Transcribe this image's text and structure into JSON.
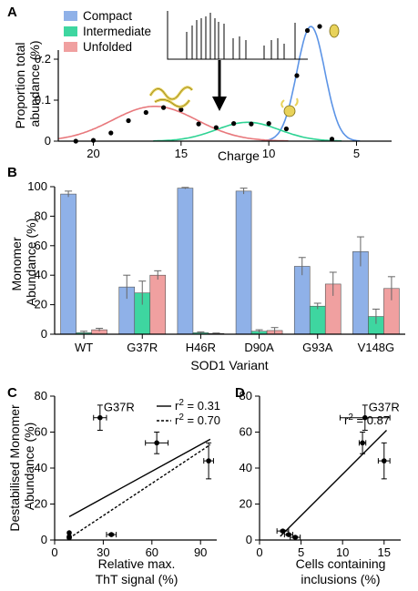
{
  "figure": {
    "panels": [
      {
        "label": "A"
      },
      {
        "label": "B"
      },
      {
        "label": "C"
      },
      {
        "label": "D"
      }
    ]
  },
  "colors": {
    "compact": "#8fb1e8",
    "intermediate": "#3ed6a0",
    "unfolded": "#f0a0a0",
    "compact_line": "#5c94e6",
    "intermediate_line": "#2ed394",
    "unfolded_line": "#e8787c",
    "protein_ribbon": "#e8d25a"
  },
  "chart_data": [
    {
      "panel": "A",
      "type": "line",
      "xlabel": "Charge",
      "ylabel": "Proportion total abundance (%)",
      "xlim": [
        22,
        3
      ],
      "ylim": [
        0,
        0.3
      ],
      "x_ticks": [
        20,
        15,
        10,
        5
      ],
      "y_ticks": [
        0,
        0.1,
        0.2
      ],
      "legend": [
        "Compact",
        "Intermediate",
        "Unfolded"
      ],
      "legend_position": "top-left",
      "series": [
        {
          "name": "Compact",
          "center": 7.6,
          "sigma": 0.8,
          "amplitude": 0.28
        },
        {
          "name": "Intermediate",
          "center": 11.2,
          "sigma": 1.8,
          "amplitude": 0.046
        },
        {
          "name": "Unfolded",
          "center": 16.5,
          "sigma": 2.4,
          "amplitude": 0.085
        }
      ],
      "points": [
        {
          "x": 21,
          "y": 0.0
        },
        {
          "x": 20,
          "y": 0.002
        },
        {
          "x": 19,
          "y": 0.02
        },
        {
          "x": 18,
          "y": 0.05
        },
        {
          "x": 17,
          "y": 0.07
        },
        {
          "x": 16,
          "y": 0.082
        },
        {
          "x": 15,
          "y": 0.077
        },
        {
          "x": 14,
          "y": 0.042
        },
        {
          "x": 13,
          "y": 0.033
        },
        {
          "x": 12,
          "y": 0.043
        },
        {
          "x": 11,
          "y": 0.042
        },
        {
          "x": 10,
          "y": 0.043
        },
        {
          "x": 9,
          "y": 0.03
        },
        {
          "x": 8.4,
          "y": 0.16
        },
        {
          "x": 7.8,
          "y": 0.27
        },
        {
          "x": 7.1,
          "y": 0.28
        },
        {
          "x": 6.4,
          "y": 0.005
        }
      ]
    },
    {
      "panel": "B",
      "type": "bar",
      "xlabel": "SOD1 Variant",
      "ylabel": "Monomer Abundance (%)",
      "ylim": [
        0,
        100
      ],
      "y_ticks": [
        0,
        20,
        40,
        60,
        80,
        100
      ],
      "categories": [
        "WT",
        "G37R",
        "H46R",
        "D90A",
        "G93A",
        "V148G"
      ],
      "series": [
        {
          "name": "Compact",
          "values": [
            95,
            32,
            99,
            97,
            46,
            56
          ],
          "errors": [
            2,
            8,
            0.5,
            2,
            6,
            10
          ]
        },
        {
          "name": "Intermediate",
          "values": [
            1,
            28,
            1,
            2,
            19,
            12
          ],
          "errors": [
            1,
            8,
            0.5,
            1,
            2,
            5
          ]
        },
        {
          "name": "Unfolded",
          "values": [
            3,
            40,
            0.5,
            2.5,
            34,
            31
          ],
          "errors": [
            1,
            3,
            0.3,
            2,
            8,
            8
          ]
        }
      ]
    },
    {
      "panel": "C",
      "type": "scatter",
      "xlabel": "Relative max. ThT signal (%)",
      "ylabel": "Destabilised Monomer Abundance (%)",
      "xlim": [
        0,
        100
      ],
      "ylim": [
        0,
        80
      ],
      "x_ticks": [
        0,
        30,
        60,
        90
      ],
      "y_ticks": [
        0,
        20,
        40,
        60,
        80
      ],
      "legend": [
        {
          "r2_text": "0.31",
          "style": "solid"
        },
        {
          "r2_text": "0.70",
          "style": "dashed"
        }
      ],
      "fits": [
        {
          "style": "solid",
          "x": [
            9,
            96
          ],
          "y": [
            13,
            56
          ]
        },
        {
          "style": "dashed",
          "x": [
            9,
            96
          ],
          "y": [
            1,
            53
          ]
        }
      ],
      "points": [
        {
          "x": 28,
          "y": 68,
          "xerr": 4,
          "yerr": 7,
          "label": "G37R"
        },
        {
          "x": 63,
          "y": 54,
          "xerr": 7,
          "yerr": 6
        },
        {
          "x": 95,
          "y": 44,
          "xerr": 3,
          "yerr": 10
        },
        {
          "x": 35,
          "y": 3,
          "xerr": 3,
          "yerr": 0.5
        },
        {
          "x": 9,
          "y": 4,
          "xerr": 0,
          "yerr": 0
        },
        {
          "x": 9,
          "y": 1.5,
          "xerr": 1,
          "yerr": 0.5
        }
      ]
    },
    {
      "panel": "D",
      "type": "scatter",
      "xlabel": "Cells containing inclusions (%)",
      "xlim": [
        0,
        17
      ],
      "ylim": [
        0,
        80
      ],
      "x_ticks": [
        0,
        5,
        10,
        15
      ],
      "y_ticks": [
        0,
        20,
        40,
        60,
        80
      ],
      "legend": [
        {
          "r2_text": "0.87",
          "style": "solid"
        }
      ],
      "fits": [
        {
          "style": "solid",
          "x": [
            2.5,
            15.3
          ],
          "y": [
            2,
            61
          ]
        }
      ],
      "points": [
        {
          "x": 12.7,
          "y": 68,
          "xerr": 3,
          "yerr": 7,
          "label": "G37R"
        },
        {
          "x": 12.4,
          "y": 54,
          "xerr": 0.4,
          "yerr": 6
        },
        {
          "x": 15,
          "y": 44,
          "xerr": 0.7,
          "yerr": 10
        },
        {
          "x": 2.8,
          "y": 5,
          "xerr": 0.7,
          "yerr": 0.5
        },
        {
          "x": 3.5,
          "y": 3,
          "xerr": 0.5,
          "yerr": 0.5
        },
        {
          "x": 4.3,
          "y": 1.5,
          "xerr": 0.6,
          "yerr": 0.5
        }
      ]
    }
  ]
}
